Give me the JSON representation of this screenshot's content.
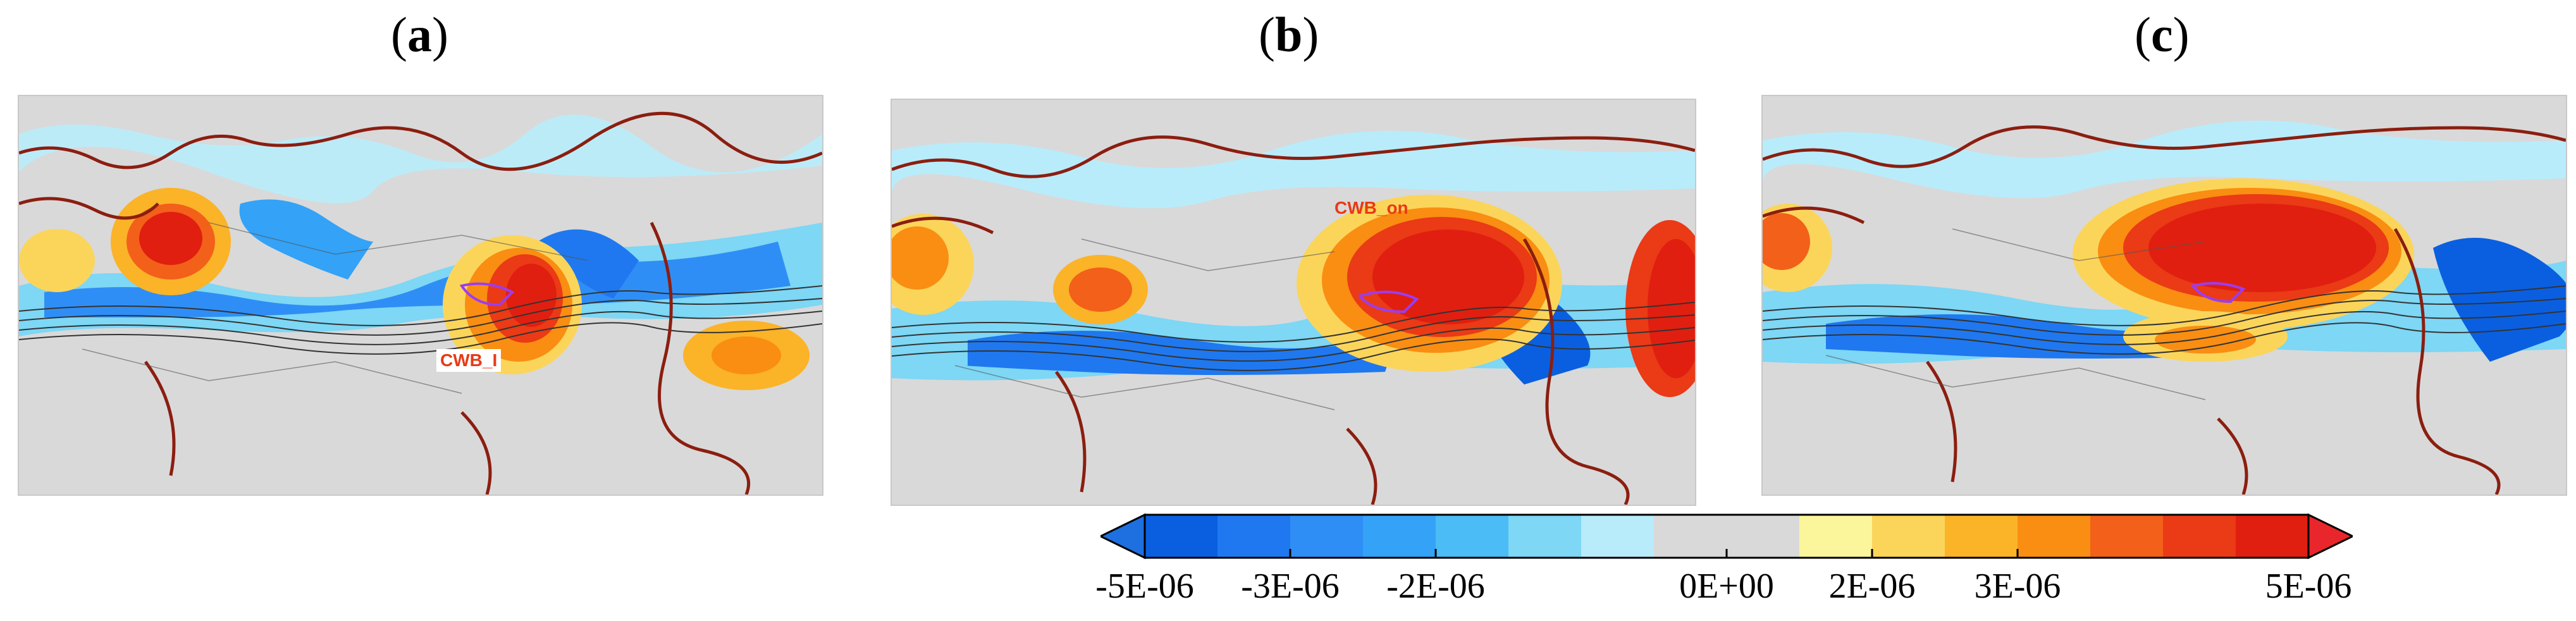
{
  "panels": [
    {
      "label": "(a)",
      "letter": "a",
      "annotation": "CWB_I"
    },
    {
      "label": "(b)",
      "letter": "b",
      "annotation": "CWB_on"
    },
    {
      "label": "(c)",
      "letter": "c",
      "annotation": ""
    }
  ],
  "colorbar": {
    "tick_labels": [
      "-5E-06",
      "-3E-06",
      "-2E-06",
      "0E+00",
      "2E-06",
      "3E-06",
      "5E-06"
    ],
    "colors": [
      "#0a5fe0",
      "#1f78ef",
      "#2f8ef5",
      "#34a2f7",
      "#4bbcf5",
      "#7dd7f5",
      "#b8ecfb",
      "#d9d9d9",
      "#d9d9d9",
      "#fbf59b",
      "#fbd55a",
      "#fbb328",
      "#f98e12",
      "#f3601a",
      "#ea3a16",
      "#e01f10"
    ],
    "under_color": "#1e6fe0",
    "over_color": "#e8262b"
  },
  "colors": {
    "land_border": "#8b1e10",
    "contour": "#333333",
    "plateau": "#9b3df0",
    "background": "#d9d9d9",
    "annotation_text": "#e83a16"
  }
}
